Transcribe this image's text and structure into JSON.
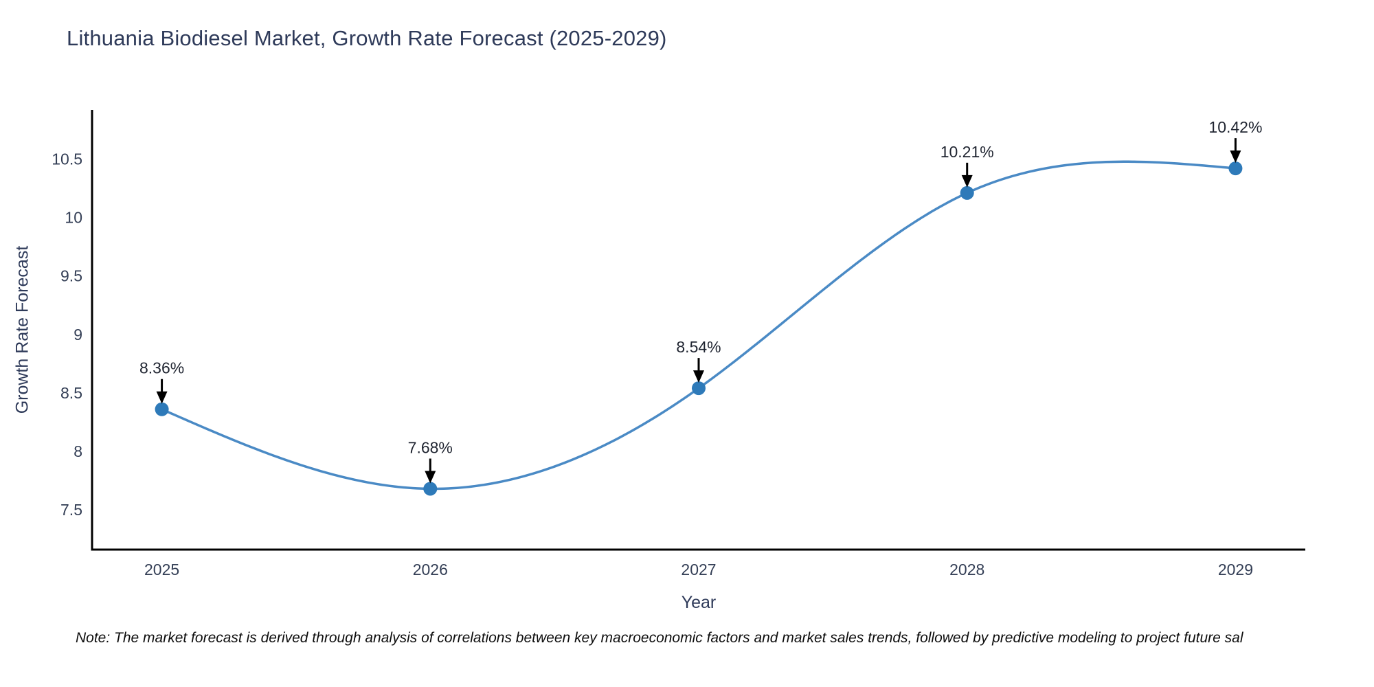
{
  "page": {
    "background": "#ffffff"
  },
  "title": {
    "text": "Lithuania Biodiesel Market, Growth Rate Forecast (2025-2029)"
  },
  "note": {
    "text": "Note: The market forecast is derived through analysis of correlations between key macroeconomic factors and market sales trends, followed by predictive modeling to project future sal"
  },
  "chart_data": {
    "type": "line",
    "title": "Lithuania Biodiesel Market, Growth Rate Forecast (2025-2029)",
    "xlabel": "Year",
    "ylabel": "Growth Rate Forecast",
    "x": [
      2025,
      2026,
      2027,
      2028,
      2029
    ],
    "y": [
      8.36,
      7.68,
      8.54,
      10.21,
      10.42
    ],
    "point_labels": [
      "8.36%",
      "7.68%",
      "8.54%",
      "10.21%",
      "10.42%"
    ],
    "xtick_labels": [
      "2025",
      "2026",
      "2027",
      "2028",
      "2029"
    ],
    "ytick_values": [
      7.5,
      8,
      8.5,
      9,
      9.5,
      10,
      10.5
    ],
    "ytick_labels": [
      "7.5",
      "8",
      "8.5",
      "9",
      "9.5",
      "10",
      "10.5"
    ],
    "xlim": [
      2024.74,
      2029.26
    ],
    "ylim": [
      7.16,
      10.92
    ],
    "grid": false,
    "legend": null,
    "curve": "smooth-cubic-spline",
    "annotations_style": "value label above point with black down arrow",
    "colors": {
      "line": "#4a8ac5",
      "marker": "#2e7ab9",
      "axis_spine": "#000000",
      "tick_text": "#333e55",
      "annotation_text": "#1f2430",
      "arrow": "#000000"
    }
  }
}
